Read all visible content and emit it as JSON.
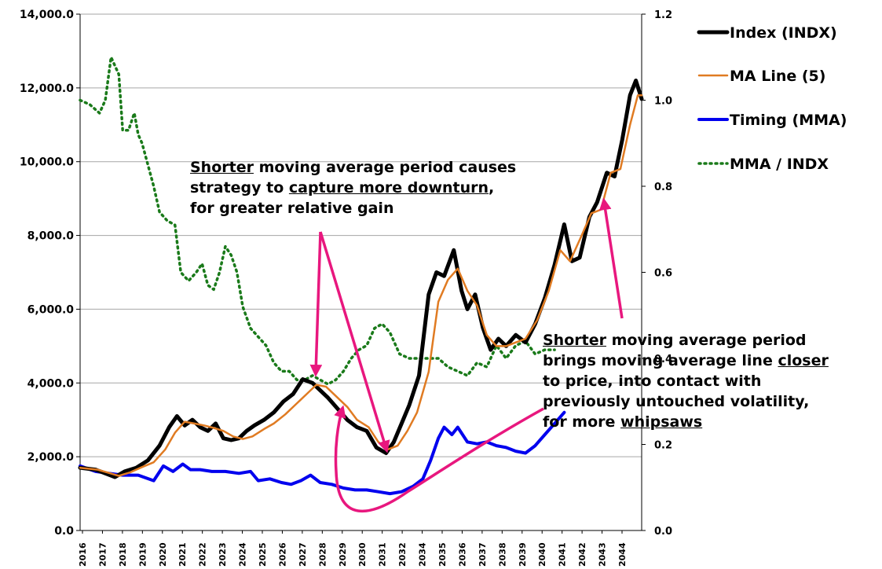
{
  "chart_data": {
    "type": "line",
    "x_categories": [
      "2016",
      "2017",
      "2018",
      "2019",
      "2020",
      "2021",
      "2022",
      "2023",
      "2024",
      "2025",
      "2026",
      "2027",
      "2028",
      "2029",
      "2030",
      "2031",
      "2032",
      "2034",
      "2035",
      "2036",
      "2037",
      "2038",
      "2039",
      "2040",
      "2041",
      "2042",
      "2043",
      "2044"
    ],
    "y_left": {
      "ticks": [
        "0.0",
        "2,000.0",
        "4,000.0",
        "6,000.0",
        "8,000.0",
        "10,000.0",
        "12,000.0",
        "14,000.0"
      ],
      "min": 0,
      "max": 14000
    },
    "y_right": {
      "ticks": [
        "0.0",
        "0.2",
        "0.4",
        "0.6",
        "0.8",
        "1.0",
        "1.2"
      ],
      "min": 0,
      "max": 1.2
    },
    "grid": "horizontal",
    "legend_position": "top-right",
    "series": [
      {
        "name": "Index (INDX)",
        "axis": "left",
        "color": "#000000",
        "style": "solid",
        "width": 5,
        "x": [
          2016,
          2016.8,
          2017.3,
          2017.8,
          2018.3,
          2018.9,
          2019.5,
          2020.1,
          2020.6,
          2021.0,
          2021.4,
          2021.8,
          2022.2,
          2022.6,
          2023.0,
          2023.4,
          2023.8,
          2024.2,
          2024.6,
          2025.0,
          2025.5,
          2026.0,
          2026.5,
          2027.0,
          2027.5,
          2028.0,
          2028.4,
          2028.8,
          2029.3,
          2029.8,
          2030.3,
          2030.8,
          2031.3,
          2031.8,
          2032.2,
          2032.6,
          2033.0,
          2033.5,
          2034.0,
          2034.4,
          2034.8,
          2035.3,
          2035.7,
          2036.0,
          2036.4,
          2036.8,
          2037.2,
          2037.6,
          2038.0,
          2038.5,
          2039.0,
          2039.5,
          2040.0,
          2040.5,
          2041.0,
          2041.4,
          2041.8,
          2042.3,
          2042.7,
          2043.2,
          2043.6,
          2044.0,
          2044.4,
          2044.7,
          2045.0
        ],
        "values": [
          1700,
          1650,
          1550,
          1450,
          1600,
          1700,
          1900,
          2300,
          2800,
          3100,
          2850,
          3000,
          2800,
          2700,
          2900,
          2500,
          2450,
          2500,
          2700,
          2850,
          3000,
          3200,
          3500,
          3700,
          4100,
          4000,
          3800,
          3600,
          3300,
          3000,
          2800,
          2700,
          2250,
          2100,
          2400,
          2900,
          3400,
          4200,
          6400,
          7000,
          6900,
          7600,
          6500,
          6000,
          6400,
          5500,
          4900,
          5200,
          5000,
          5300,
          5100,
          5600,
          6300,
          7200,
          8300,
          7300,
          7400,
          8500,
          8900,
          9700,
          9600,
          10600,
          11800,
          12200,
          11700
        ]
      },
      {
        "name": "MA Line (5)",
        "axis": "left",
        "color": "#e07b22",
        "style": "solid",
        "width": 2.5,
        "x": [
          2016,
          2016.9,
          2017.5,
          2018.0,
          2018.6,
          2019.2,
          2019.8,
          2020.4,
          2020.9,
          2021.4,
          2021.9,
          2022.4,
          2022.9,
          2023.4,
          2023.9,
          2024.4,
          2024.9,
          2025.5,
          2026.0,
          2026.6,
          2027.2,
          2027.7,
          2028.2,
          2028.7,
          2029.2,
          2029.8,
          2030.3,
          2030.9,
          2031.4,
          2031.9,
          2032.4,
          2032.9,
          2033.4,
          2034.0,
          2034.5,
          2035.0,
          2035.5,
          2036.0,
          2036.5,
          2037.0,
          2037.5,
          2038.0,
          2038.5,
          2039.0,
          2039.6,
          2040.2,
          2040.8,
          2041.3,
          2041.9,
          2042.4,
          2042.9,
          2043.4,
          2043.9,
          2044.4,
          2044.8,
          2045.0
        ],
        "values": [
          1700,
          1650,
          1560,
          1480,
          1580,
          1720,
          1850,
          2200,
          2650,
          2950,
          2900,
          2850,
          2780,
          2700,
          2550,
          2480,
          2550,
          2750,
          2900,
          3150,
          3450,
          3700,
          3950,
          3900,
          3650,
          3350,
          3000,
          2800,
          2400,
          2200,
          2300,
          2700,
          3200,
          4300,
          6200,
          6800,
          7100,
          6500,
          6100,
          5300,
          5000,
          5000,
          5100,
          5200,
          5700,
          6500,
          7600,
          7300,
          8000,
          8600,
          8700,
          9700,
          9800,
          11000,
          11800,
          11800
        ]
      },
      {
        "name": "Timing (MMA)",
        "axis": "left",
        "color": "#0000ee",
        "style": "solid",
        "width": 4,
        "x": [
          2016,
          2016.8,
          2017.5,
          2018.2,
          2019.0,
          2019.8,
          2020.3,
          2020.8,
          2021.3,
          2021.7,
          2022.2,
          2022.8,
          2023.5,
          2024.2,
          2024.8,
          2025.2,
          2025.8,
          2026.4,
          2026.9,
          2027.4,
          2027.9,
          2028.4,
          2029.0,
          2029.6,
          2030.2,
          2030.8,
          2031.4,
          2032.0,
          2032.6,
          2033.2,
          2033.7,
          2034.1,
          2034.5,
          2034.8,
          2035.2,
          2035.5,
          2036.0,
          2036.5,
          2037.0,
          2037.5,
          2038.0,
          2038.5,
          2039.0,
          2039.5,
          2040.0,
          2040.5,
          2041.0
        ],
        "values": [
          1750,
          1600,
          1550,
          1500,
          1500,
          1350,
          1750,
          1600,
          1800,
          1650,
          1650,
          1600,
          1600,
          1550,
          1600,
          1350,
          1400,
          1300,
          1250,
          1350,
          1500,
          1300,
          1250,
          1150,
          1100,
          1100,
          1050,
          1000,
          1050,
          1200,
          1400,
          1900,
          2500,
          2800,
          2600,
          2800,
          2400,
          2350,
          2400,
          2300,
          2250,
          2150,
          2100,
          2300,
          2600,
          2900,
          3200
        ]
      },
      {
        "name": "MMA / INDX",
        "axis": "right",
        "color": "#1a7a1a",
        "style": "dotted",
        "width": 3.5,
        "x": [
          2016,
          2016.5,
          2017.0,
          2017.3,
          2017.6,
          2018.0,
          2018.2,
          2018.5,
          2018.8,
          2019.0,
          2019.2,
          2019.5,
          2019.8,
          2020.1,
          2020.5,
          2020.9,
          2021.2,
          2021.6,
          2022.0,
          2022.3,
          2022.6,
          2022.9,
          2023.2,
          2023.5,
          2023.8,
          2024.1,
          2024.4,
          2024.8,
          2025.2,
          2025.6,
          2026.0,
          2026.4,
          2026.8,
          2027.2,
          2027.6,
          2028.0,
          2028.4,
          2028.8,
          2029.2,
          2029.6,
          2030.0,
          2030.4,
          2030.8,
          2031.2,
          2031.6,
          2032.0,
          2032.5,
          2033.0,
          2033.5,
          2034.0,
          2034.5,
          2035.0,
          2035.5,
          2036.0,
          2036.5,
          2037.0,
          2037.5,
          2038.0,
          2038.5,
          2039.0,
          2039.5,
          2040.0,
          2040.5
        ],
        "values": [
          1.0,
          0.99,
          0.97,
          1.0,
          1.1,
          1.06,
          0.93,
          0.93,
          0.97,
          0.92,
          0.9,
          0.85,
          0.8,
          0.74,
          0.72,
          0.71,
          0.6,
          0.58,
          0.6,
          0.62,
          0.57,
          0.56,
          0.6,
          0.66,
          0.64,
          0.6,
          0.52,
          0.47,
          0.45,
          0.43,
          0.39,
          0.37,
          0.37,
          0.35,
          0.35,
          0.36,
          0.35,
          0.34,
          0.35,
          0.37,
          0.4,
          0.42,
          0.43,
          0.47,
          0.48,
          0.46,
          0.41,
          0.4,
          0.4,
          0.4,
          0.4,
          0.38,
          0.37,
          0.36,
          0.39,
          0.38,
          0.43,
          0.4,
          0.43,
          0.44,
          0.41,
          0.42,
          0.42
        ]
      }
    ],
    "annotations": [
      {
        "id": "top",
        "lines": [
          [
            {
              "t": "Shorter",
              "u": true
            },
            {
              "t": " moving average period causes",
              "u": false
            }
          ],
          [
            {
              "t": "strategy to ",
              "u": false
            },
            {
              "t": "capture more downturn",
              "u": true
            },
            {
              "t": ",",
              "u": false
            }
          ],
          [
            {
              "t": "for greater relative gain",
              "u": false
            }
          ]
        ]
      },
      {
        "id": "right",
        "lines": [
          [
            {
              "t": "Shorter",
              "u": true
            },
            {
              "t": " moving average period",
              "u": false
            }
          ],
          [
            {
              "t": "brings moving average line ",
              "u": false
            },
            {
              "t": "closer",
              "u": true
            }
          ],
          [
            {
              "t": "to price, into contact with",
              "u": false
            }
          ],
          [
            {
              "t": "previously untouched volatility,",
              "u": false
            }
          ],
          [
            {
              "t": "for more ",
              "u": false
            },
            {
              "t": "whipsaws",
              "u": true
            }
          ]
        ]
      }
    ],
    "arrow_color": "#e8177e"
  }
}
